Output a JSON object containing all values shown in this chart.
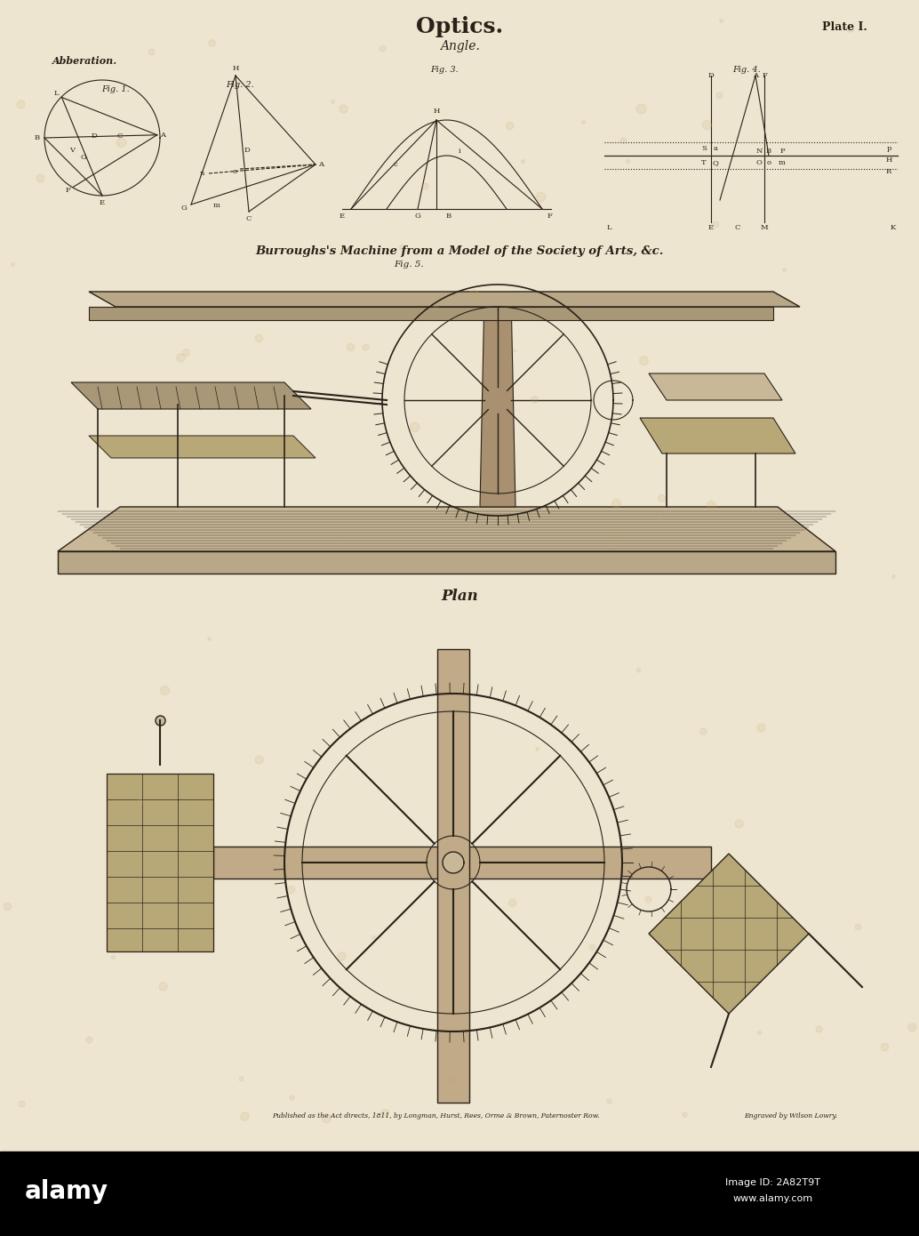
{
  "bg_color": "#e8e0cc",
  "paper_color": "#ede5d0",
  "ink_color": "#2a2218",
  "title": "Optics.",
  "subtitle": "Angle.",
  "plate": "Plate I.",
  "abberation_label": "Abberation.",
  "machine_label": "Burroughs's Machine from a Model of the Society of Arts, &c.",
  "fig5_label": "Fig. 5.",
  "plan_label": "Plan",
  "footer_left": "Published as the Act directs, 1811, by Longman, Hurst, Rees, Orme & Brown, Paternoster Row.",
  "footer_right": "Engraved by Wilson Lowry.",
  "alamy_text": "alamy",
  "image_id": "Image ID: 2A82T9T",
  "alamy_url": "www.alamy.com",
  "black_bar_color": "#000000",
  "fig1_label": "Fig. 1.",
  "fig2_label": "Fig. 2.",
  "fig3_label": "Fig. 3.",
  "fig4_label": "Fig. 4."
}
